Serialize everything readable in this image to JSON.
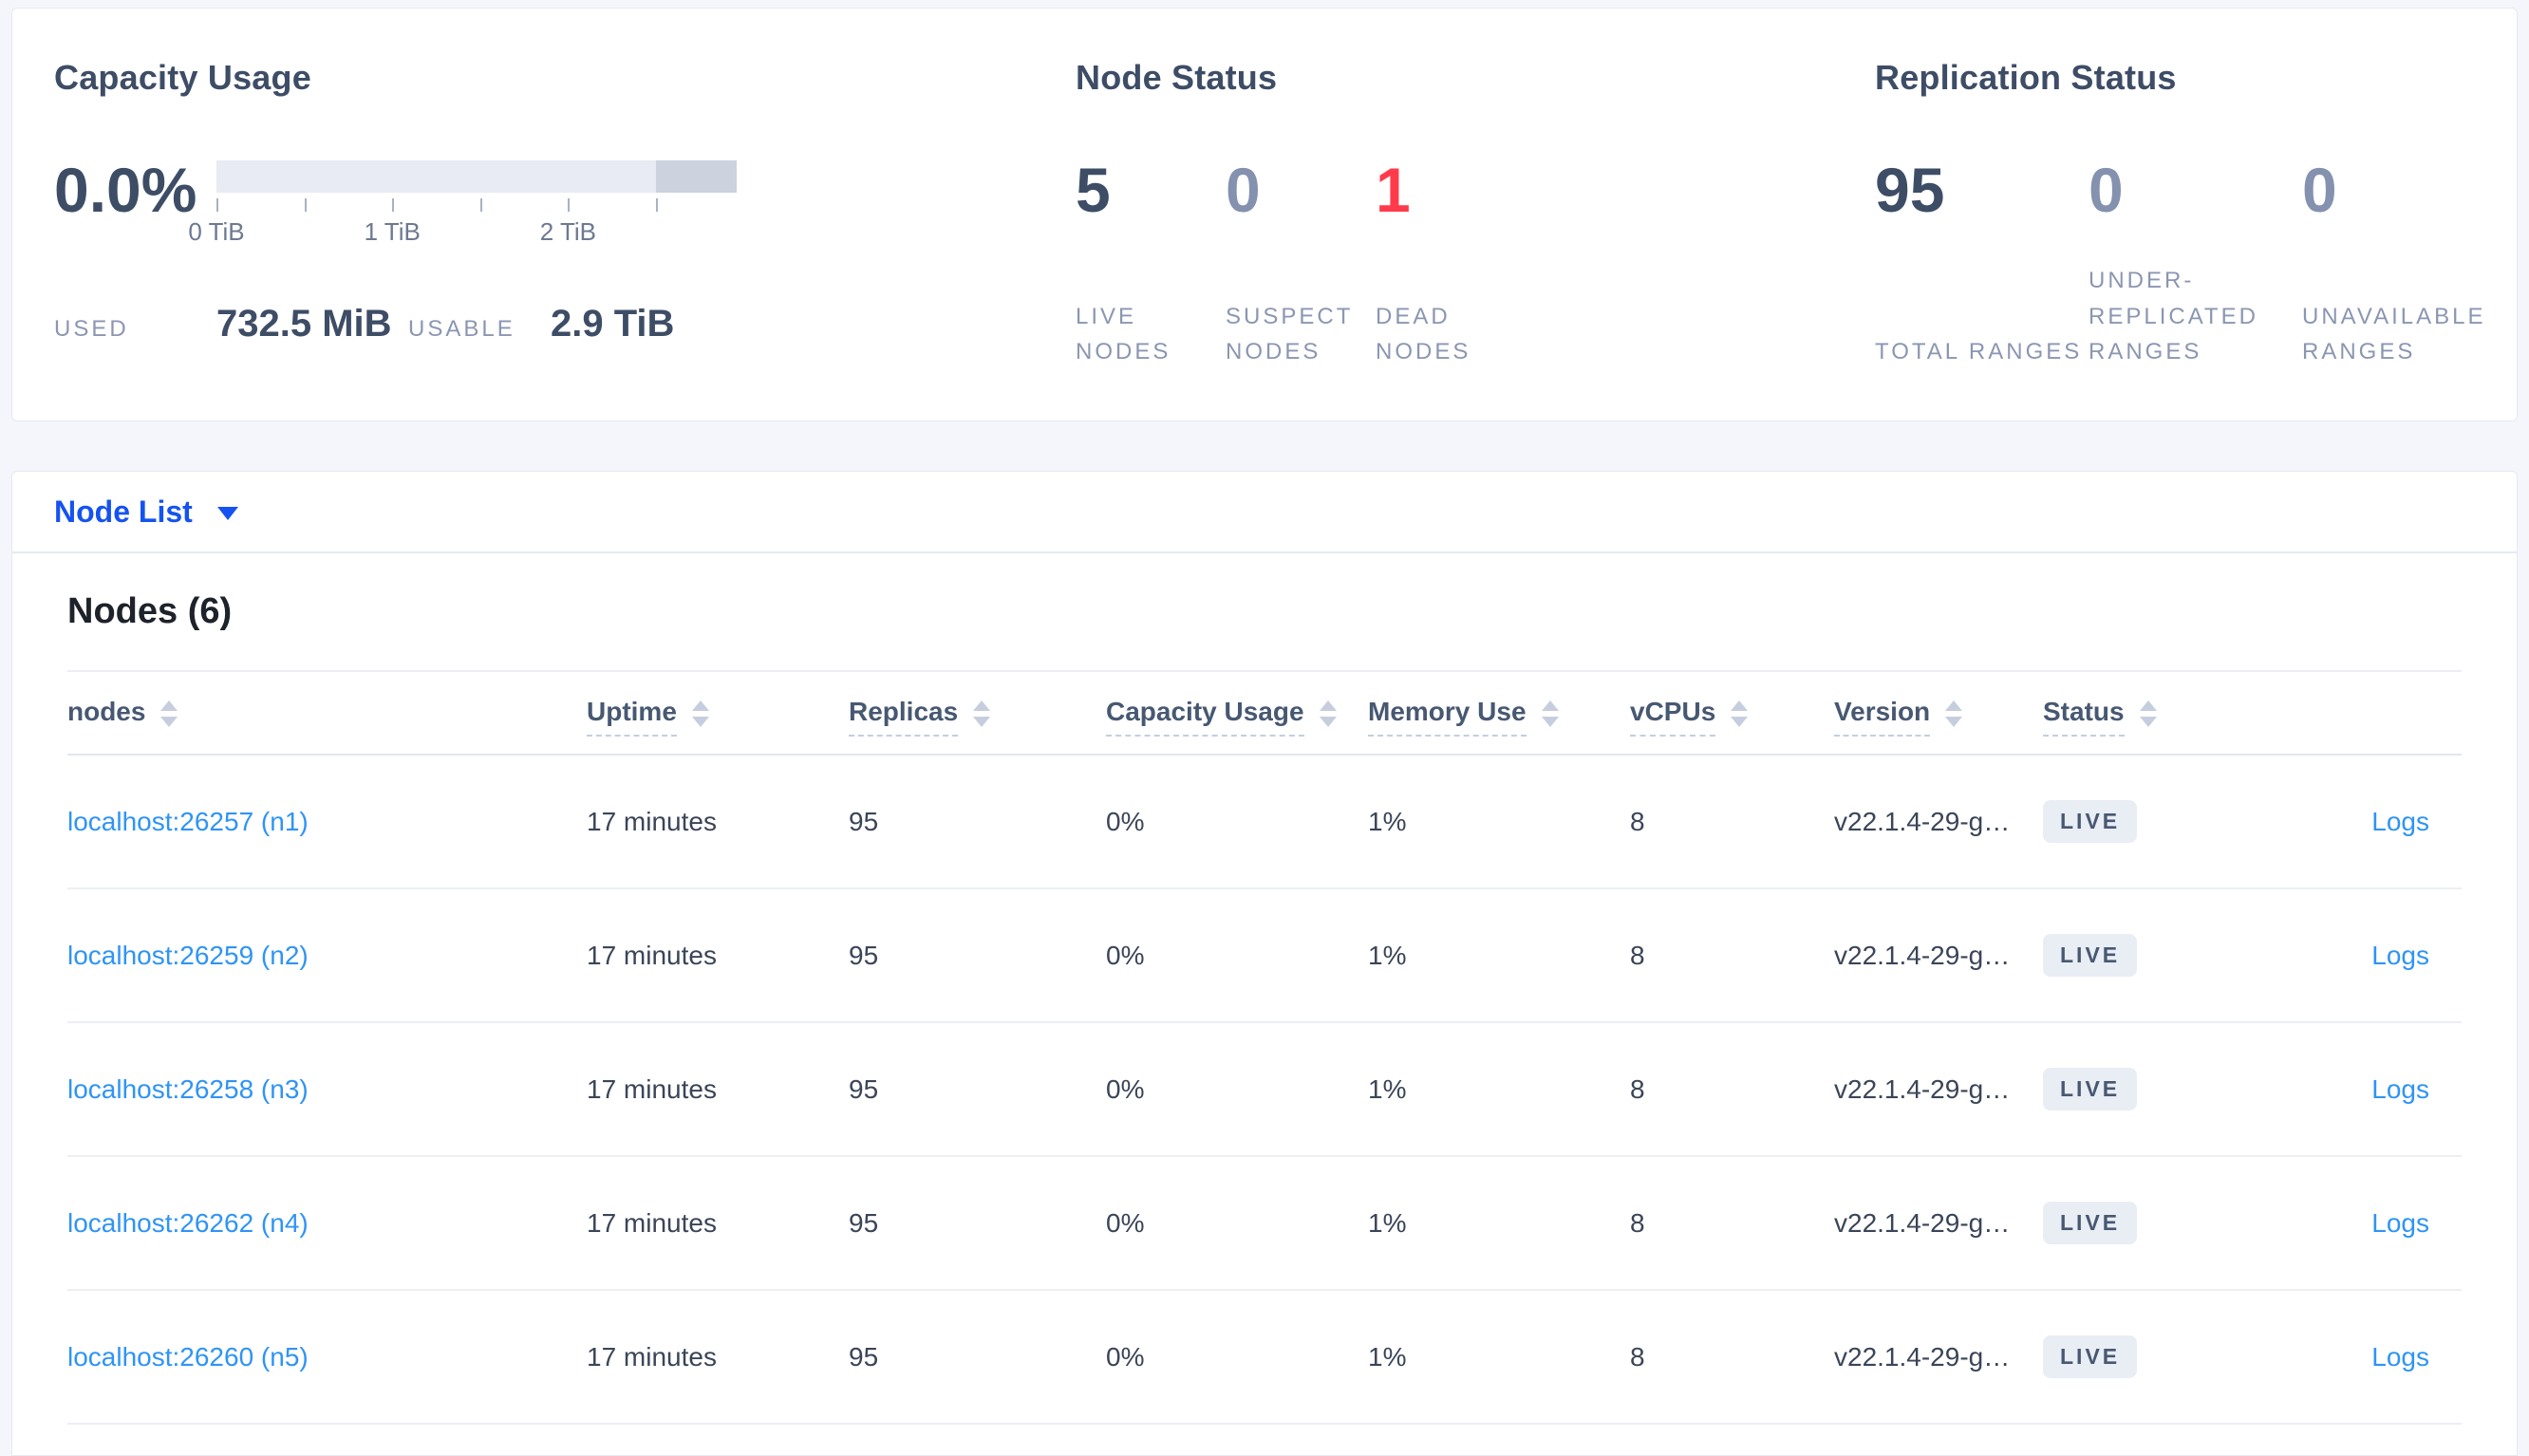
{
  "summary": {
    "capacity": {
      "title": "Capacity Usage",
      "percent": "0.0%",
      "ticks": [
        "0 TiB",
        "1 TiB",
        "2 TiB"
      ],
      "used_label": "USED",
      "used_value": "732.5 MiB",
      "usable_label": "USABLE",
      "usable_value": "2.9 TiB"
    },
    "node_status": {
      "title": "Node Status",
      "stats": [
        {
          "value": "5",
          "label": "LIVE NODES",
          "tone": "dark"
        },
        {
          "value": "0",
          "label": "SUSPECT NODES",
          "tone": "muted"
        },
        {
          "value": "1",
          "label": "DEAD NODES",
          "tone": "danger"
        }
      ]
    },
    "replication": {
      "title": "Replication Status",
      "stats": [
        {
          "value": "95",
          "label": "TOTAL RANGES",
          "tone": "dark"
        },
        {
          "value": "0",
          "label": "UNDER-REPLICATED RANGES",
          "tone": "muted"
        },
        {
          "value": "0",
          "label": "UNAVAILABLE RANGES",
          "tone": "muted"
        }
      ]
    }
  },
  "view_selector": {
    "label": "Node List"
  },
  "nodes_section": {
    "heading": "Nodes (6)",
    "columns": [
      {
        "label": "nodes",
        "sortable": true,
        "underline": false
      },
      {
        "label": "Uptime",
        "sortable": true,
        "underline": true
      },
      {
        "label": "Replicas",
        "sortable": true,
        "underline": true
      },
      {
        "label": "Capacity Usage",
        "sortable": true,
        "underline": true
      },
      {
        "label": "Memory Use",
        "sortable": true,
        "underline": true
      },
      {
        "label": "vCPUs",
        "sortable": true,
        "underline": true
      },
      {
        "label": "Version",
        "sortable": true,
        "underline": true
      },
      {
        "label": "Status",
        "sortable": true,
        "underline": true
      }
    ],
    "rows": [
      {
        "node": "localhost:26257 (n1)",
        "uptime": "17 minutes",
        "replicas": "95",
        "capacity": "0%",
        "memory": "1%",
        "vcpus": "8",
        "version": "v22.1.4-29-g…",
        "status": "LIVE",
        "logs": "Logs"
      },
      {
        "node": "localhost:26259 (n2)",
        "uptime": "17 minutes",
        "replicas": "95",
        "capacity": "0%",
        "memory": "1%",
        "vcpus": "8",
        "version": "v22.1.4-29-g…",
        "status": "LIVE",
        "logs": "Logs"
      },
      {
        "node": "localhost:26258 (n3)",
        "uptime": "17 minutes",
        "replicas": "95",
        "capacity": "0%",
        "memory": "1%",
        "vcpus": "8",
        "version": "v22.1.4-29-g…",
        "status": "LIVE",
        "logs": "Logs"
      },
      {
        "node": "localhost:26262 (n4)",
        "uptime": "17 minutes",
        "replicas": "95",
        "capacity": "0%",
        "memory": "1%",
        "vcpus": "8",
        "version": "v22.1.4-29-g…",
        "status": "LIVE",
        "logs": "Logs"
      },
      {
        "node": "localhost:26260 (n5)",
        "uptime": "17 minutes",
        "replicas": "95",
        "capacity": "0%",
        "memory": "1%",
        "vcpus": "8",
        "version": "v22.1.4-29-g…",
        "status": "LIVE",
        "logs": "Logs"
      }
    ]
  },
  "colors": {
    "accent_blue": "#1553f0",
    "link_blue": "#2f94f5",
    "danger_red": "#ff3b4b",
    "dark_navy": "#3e4d66",
    "muted_blue_gray": "#8491af",
    "badge_bg": "#e9edf4",
    "bar_light": "#e8eaf4",
    "bar_dark": "#cdd2df",
    "page_bg": "#f4f6fb"
  }
}
